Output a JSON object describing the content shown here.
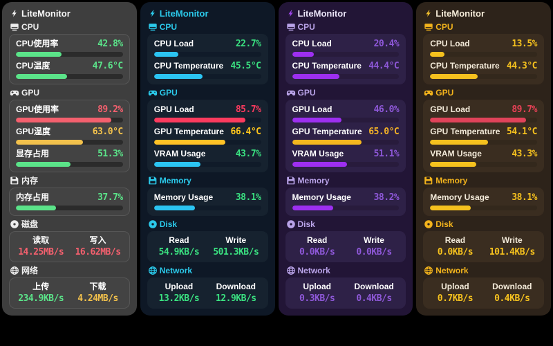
{
  "panels": [
    {
      "title": "LiteMonitor",
      "theme": {
        "bg": "#3e3e3e",
        "card": "#434343",
        "card_border": "#565656",
        "track": "#2b2b2b",
        "title_color": "#f7f7f7",
        "accent": "#ededed",
        "label": "#ffffff",
        "bolt": "#f7f7f7"
      },
      "sections": {
        "cpu": "CPU",
        "gpu": "GPU",
        "memory": "内存",
        "disk": "磁盘",
        "network": "网络"
      },
      "cpu": [
        {
          "label": "CPU使用率",
          "value": "42.8%",
          "pct": 42.8,
          "color": "#5be389",
          "bar": "#5be389"
        },
        {
          "label": "CPU温度",
          "value": "47.6°C",
          "pct": 47.6,
          "color": "#5be389",
          "bar": "#5be389"
        }
      ],
      "gpu": [
        {
          "label": "GPU使用率",
          "value": "89.2%",
          "pct": 89.2,
          "color": "#f4606e",
          "bar": "#f4606e"
        },
        {
          "label": "GPU温度",
          "value": "63.0°C",
          "pct": 63.0,
          "color": "#f2c14c",
          "bar": "#f2c14c"
        },
        {
          "label": "显存占用",
          "value": "51.3%",
          "pct": 51.3,
          "color": "#5be389",
          "bar": "#5be389"
        }
      ],
      "memory": [
        {
          "label": "内存占用",
          "value": "37.7%",
          "pct": 37.7,
          "color": "#5be389",
          "bar": "#5be389"
        }
      ],
      "disk": {
        "labels": [
          "读取",
          "写入"
        ],
        "values": [
          "14.25MB/s",
          "16.62MB/s"
        ],
        "colors": [
          "#f4606e",
          "#f4606e"
        ]
      },
      "network": {
        "labels": [
          "上传",
          "下载"
        ],
        "values": [
          "234.9KB/s",
          "4.24MB/s"
        ],
        "colors": [
          "#5be389",
          "#f2c14c"
        ]
      }
    },
    {
      "title": "LiteMonitor",
      "theme": {
        "bg": "#0e1826",
        "card": "#16222f",
        "card_border": "#16222f",
        "track": "#101b29",
        "title_color": "#2bc9ea",
        "accent": "#2bc9ea",
        "label": "#ffffff",
        "bolt": "#2bc9ea"
      },
      "sections": {
        "cpu": "CPU",
        "gpu": "GPU",
        "memory": "Memory",
        "disk": "Disk",
        "network": "Network"
      },
      "cpu": [
        {
          "label": "CPU Load",
          "value": "22.7%",
          "pct": 22.7,
          "color": "#3ae080",
          "bar": "#2bc4f2"
        },
        {
          "label": "CPU Temperature",
          "value": "45.5°C",
          "pct": 45.5,
          "color": "#3ae080",
          "bar": "#2bc4f2"
        }
      ],
      "gpu": [
        {
          "label": "GPU Load",
          "value": "85.7%",
          "pct": 85.7,
          "color": "#fb3b5e",
          "bar": "#fb3b5e"
        },
        {
          "label": "GPU Temperature",
          "value": "66.4°C",
          "pct": 66.4,
          "color": "#ffc61c",
          "bar": "#ffc226"
        },
        {
          "label": "VRAM Usage",
          "value": "43.7%",
          "pct": 43.7,
          "color": "#3ae080",
          "bar": "#2bc4f2"
        }
      ],
      "memory": [
        {
          "label": "Memory Usage",
          "value": "38.1%",
          "pct": 38.1,
          "color": "#3ae080",
          "bar": "#2bc4f2"
        }
      ],
      "disk": {
        "labels": [
          "Read",
          "Write"
        ],
        "values": [
          "54.9KB/s",
          "501.3KB/s"
        ],
        "colors": [
          "#3ae080",
          "#3ae080"
        ]
      },
      "network": {
        "labels": [
          "Upload",
          "Download"
        ],
        "values": [
          "13.2KB/s",
          "12.9KB/s"
        ],
        "colors": [
          "#3ae080",
          "#3ae080"
        ]
      }
    },
    {
      "title": "LiteMonitor",
      "theme": {
        "bg": "#221536",
        "card": "#2e2147",
        "card_border": "#2e2147",
        "track": "#281b3c",
        "title_color": "#eae4f7",
        "accent": "#b9a3e8",
        "label": "#ffffff",
        "bolt": "#9d45e8"
      },
      "sections": {
        "cpu": "CPU",
        "gpu": "GPU",
        "memory": "Memory",
        "disk": "Disk",
        "network": "Network"
      },
      "cpu": [
        {
          "label": "CPU Load",
          "value": "20.4%",
          "pct": 20.4,
          "color": "#8e58d8",
          "bar": "#9d2ff0"
        },
        {
          "label": "CPU Temperature",
          "value": "44.4°C",
          "pct": 44.4,
          "color": "#8e58d8",
          "bar": "#9d2ff0"
        }
      ],
      "gpu": [
        {
          "label": "GPU Load",
          "value": "46.0%",
          "pct": 46.0,
          "color": "#8e58d8",
          "bar": "#9d2ff0"
        },
        {
          "label": "GPU Temperature",
          "value": "65.0°C",
          "pct": 65.0,
          "color": "#f2b127",
          "bar": "#f5b71e"
        },
        {
          "label": "VRAM Usage",
          "value": "51.1%",
          "pct": 51.1,
          "color": "#8e58d8",
          "bar": "#9d2ff0"
        }
      ],
      "memory": [
        {
          "label": "Memory Usage",
          "value": "38.2%",
          "pct": 38.2,
          "color": "#8e58d8",
          "bar": "#9d2ff0"
        }
      ],
      "disk": {
        "labels": [
          "Read",
          "Write"
        ],
        "values": [
          "0.0KB/s",
          "0.0KB/s"
        ],
        "colors": [
          "#8e58d8",
          "#8e58d8"
        ]
      },
      "network": {
        "labels": [
          "Upload",
          "Download"
        ],
        "values": [
          "0.3KB/s",
          "0.4KB/s"
        ],
        "colors": [
          "#8e58d8",
          "#8e58d8"
        ]
      }
    },
    {
      "title": "LiteMonitor",
      "theme": {
        "bg": "#2d231a",
        "card": "#3a2d20",
        "card_border": "#3a2d20",
        "track": "#33281c",
        "title_color": "#f5ecd9",
        "accent": "#f2b31c",
        "label": "#f3ead9",
        "bolt": "#f2c12e"
      },
      "sections": {
        "cpu": "CPU",
        "gpu": "GPU",
        "memory": "Memory",
        "disk": "Disk",
        "network": "Network"
      },
      "cpu": [
        {
          "label": "CPU Load",
          "value": "13.5%",
          "pct": 13.5,
          "color": "#f5c11e",
          "bar": "#f5c11e"
        },
        {
          "label": "CPU Temperature",
          "value": "44.3°C",
          "pct": 44.3,
          "color": "#f5c11e",
          "bar": "#f5c11e"
        }
      ],
      "gpu": [
        {
          "label": "GPU Load",
          "value": "89.7%",
          "pct": 89.7,
          "color": "#e84156",
          "bar": "#e0435a"
        },
        {
          "label": "GPU Temperature",
          "value": "54.1°C",
          "pct": 54.1,
          "color": "#f5c11e",
          "bar": "#f5c11e"
        },
        {
          "label": "VRAM Usage",
          "value": "43.3%",
          "pct": 43.3,
          "color": "#f5c11e",
          "bar": "#f5c11e"
        }
      ],
      "memory": [
        {
          "label": "Memory Usage",
          "value": "38.1%",
          "pct": 38.1,
          "color": "#f5c11e",
          "bar": "#f5c11e"
        }
      ],
      "disk": {
        "labels": [
          "Read",
          "Write"
        ],
        "values": [
          "0.0KB/s",
          "101.4KB/s"
        ],
        "colors": [
          "#f5c11e",
          "#f5c11e"
        ]
      },
      "network": {
        "labels": [
          "Upload",
          "Download"
        ],
        "values": [
          "0.7KB/s",
          "0.4KB/s"
        ],
        "colors": [
          "#f5c11e",
          "#f5c11e"
        ]
      }
    }
  ]
}
